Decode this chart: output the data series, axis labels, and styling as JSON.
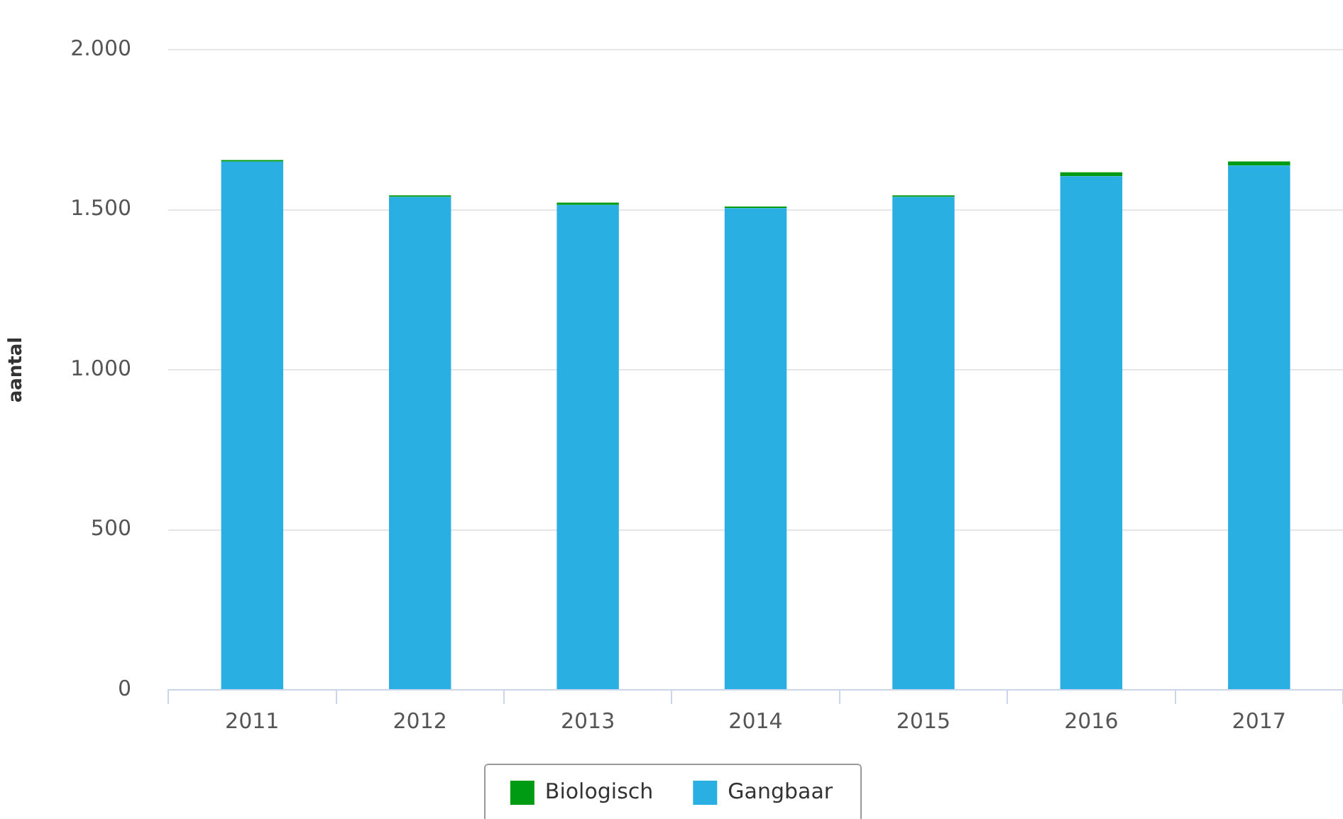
{
  "chart_data": {
    "type": "bar",
    "ylabel": "aantal",
    "categories": [
      "2011",
      "2012",
      "2013",
      "2014",
      "2015",
      "2016",
      "2017"
    ],
    "stacked": true,
    "series": [
      {
        "name": "Gangbaar",
        "color": "#29afe2",
        "values": [
          1650,
          1540,
          1515,
          1505,
          1540,
          1605,
          1638
        ]
      },
      {
        "name": "Biologisch",
        "color": "#009a13",
        "values": [
          5,
          5,
          7,
          5,
          5,
          12,
          13
        ]
      }
    ],
    "ylim": [
      0,
      2000
    ],
    "yticks": [
      {
        "value": 0,
        "label": "0"
      },
      {
        "value": 500,
        "label": "500"
      },
      {
        "value": 1000,
        "label": "1.000"
      },
      {
        "value": 1500,
        "label": "1.500"
      },
      {
        "value": 2000,
        "label": "2.000"
      }
    ],
    "grid": "y",
    "legend": "bottom"
  }
}
